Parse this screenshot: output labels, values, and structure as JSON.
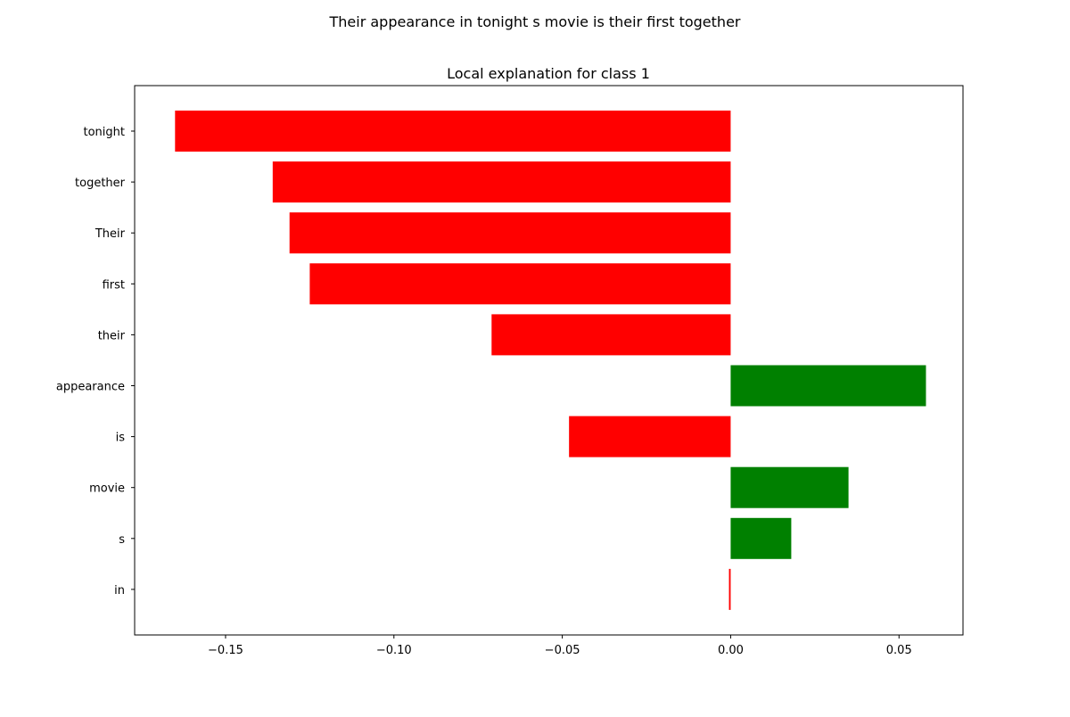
{
  "chart_data": {
    "type": "bar",
    "orientation": "horizontal",
    "suptitle": "Their appearance in tonight s movie is their first together",
    "title": "Local explanation for class 1",
    "xlabel": "",
    "ylabel": "",
    "categories": [
      "tonight",
      "together",
      "Their",
      "first",
      "their",
      "appearance",
      "is",
      "movie",
      "s",
      "in"
    ],
    "values": [
      -0.165,
      -0.136,
      -0.131,
      -0.125,
      -0.071,
      0.058,
      -0.048,
      0.035,
      0.018,
      -0.0005
    ],
    "xlim": [
      -0.177,
      0.069
    ],
    "xticks": [
      -0.15,
      -0.1,
      -0.05,
      0.0,
      0.05
    ],
    "xtick_labels": [
      "−0.15",
      "−0.10",
      "−0.05",
      "0.00",
      "0.05"
    ],
    "grid": false,
    "legend": "none",
    "colors": {
      "positive": "#008000",
      "negative": "#ff0000",
      "axis": "#000000",
      "background": "#ffffff"
    }
  }
}
